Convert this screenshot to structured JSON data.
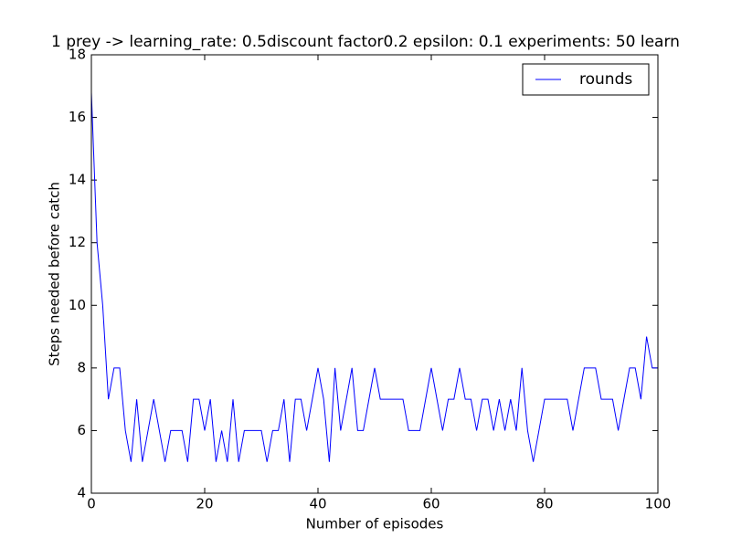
{
  "chart_data": {
    "type": "line",
    "title": "1 prey -> learning_rate: 0.5discount factor0.2 epsilon: 0.1 experiments: 50 learn",
    "xlabel": "Number of episodes",
    "ylabel": "Steps needed before catch",
    "x": [
      0,
      1,
      2,
      3,
      4,
      5,
      6,
      7,
      8,
      9,
      10,
      11,
      12,
      13,
      14,
      15,
      16,
      17,
      18,
      19,
      20,
      21,
      22,
      23,
      24,
      25,
      26,
      27,
      28,
      29,
      30,
      31,
      32,
      33,
      34,
      35,
      36,
      37,
      38,
      39,
      40,
      41,
      42,
      43,
      44,
      45,
      46,
      47,
      48,
      49,
      50,
      51,
      52,
      53,
      54,
      55,
      56,
      57,
      58,
      59,
      60,
      61,
      62,
      63,
      64,
      65,
      66,
      67,
      68,
      69,
      70,
      71,
      72,
      73,
      74,
      75,
      76,
      77,
      78,
      79,
      80,
      81,
      82,
      83,
      84,
      85,
      86,
      87,
      88,
      89,
      90,
      91,
      92,
      93,
      94,
      95,
      96,
      97,
      98,
      99,
      100
    ],
    "series": [
      {
        "name": "rounds",
        "color": "#0000ff",
        "values": [
          16.8,
          12,
          10,
          7,
          8,
          8,
          6,
          5,
          7,
          5,
          6,
          7,
          6,
          5,
          6,
          6,
          6,
          5,
          7,
          7,
          6,
          7,
          5,
          6,
          5,
          7,
          5,
          6,
          6,
          6,
          6,
          5,
          6,
          6,
          7,
          5,
          7,
          7,
          6,
          7,
          8,
          7,
          5,
          8,
          6,
          7,
          8,
          6,
          6,
          7,
          8,
          7,
          7,
          7,
          7,
          7,
          6,
          6,
          6,
          7,
          8,
          7,
          6,
          7,
          7,
          8,
          7,
          7,
          6,
          7,
          7,
          6,
          7,
          6,
          7,
          6,
          8,
          6,
          5,
          6,
          7,
          7,
          7,
          7,
          7,
          6,
          7,
          8,
          8,
          8,
          7,
          7,
          7,
          6,
          7,
          8,
          8,
          7,
          9,
          8,
          8
        ]
      }
    ],
    "xlim": [
      0,
      100
    ],
    "xticks": [
      0,
      20,
      40,
      60,
      80,
      100
    ],
    "ylim": [
      4,
      18
    ],
    "yticks": [
      4,
      6,
      8,
      10,
      12,
      14,
      16,
      18
    ],
    "legend": "upper right"
  }
}
